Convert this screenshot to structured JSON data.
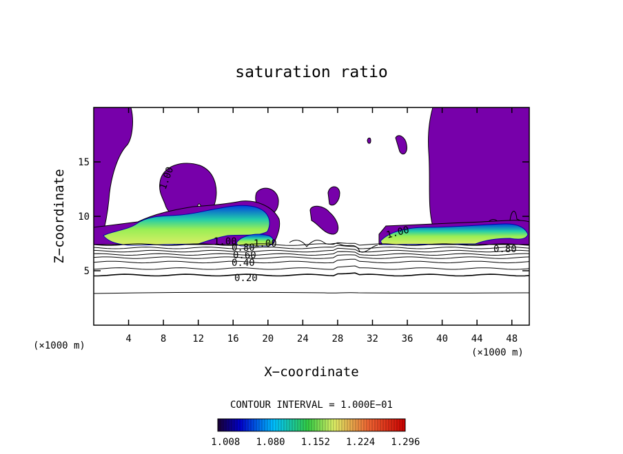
{
  "chart_data": {
    "type": "contour",
    "title": "saturation ratio",
    "xlabel": "X−coordinate",
    "ylabel": "Z−coordinate",
    "x_unit": "(×1000 m)",
    "z_unit": "(×1000 m)",
    "xlim": [
      0,
      50
    ],
    "ylim": [
      0,
      20
    ],
    "x_ticks": [
      "4",
      "8",
      "12",
      "16",
      "20",
      "24",
      "28",
      "32",
      "36",
      "40",
      "44",
      "48"
    ],
    "y_ticks": [
      "5",
      "10",
      "15"
    ],
    "contour_interval_text": "CONTOUR INTERVAL = 1.000E−01",
    "contour_labels": [
      "0.20",
      "0.40",
      "0.60",
      "0.80",
      "1.00",
      "1.00",
      "0.80",
      "1.00",
      "1.00"
    ],
    "colorbar": {
      "ticks": [
        "1.008",
        "1.080",
        "1.152",
        "1.224",
        "1.296"
      ],
      "min": 1.0,
      "max": 1.3
    },
    "contours": [
      {
        "level": 0.2,
        "z": 4.6
      },
      {
        "level": 0.3,
        "z": 5.2
      },
      {
        "level": 0.4,
        "z": 5.8
      },
      {
        "level": 0.5,
        "z": 6.2
      },
      {
        "level": 0.6,
        "z": 6.5
      },
      {
        "level": 0.7,
        "z": 6.8
      },
      {
        "level": 0.8,
        "z": 7.1
      },
      {
        "level": 0.9,
        "z": 7.4
      }
    ],
    "colors": {
      "saturated": "#7700aa",
      "cbar_low": "#1a0033",
      "cbar_blue": "#0000cc",
      "cbar_cyan": "#00c0ff",
      "cbar_green": "#33cc44",
      "cbar_yellow": "#ddee66",
      "cbar_red": "#cc0000"
    }
  }
}
